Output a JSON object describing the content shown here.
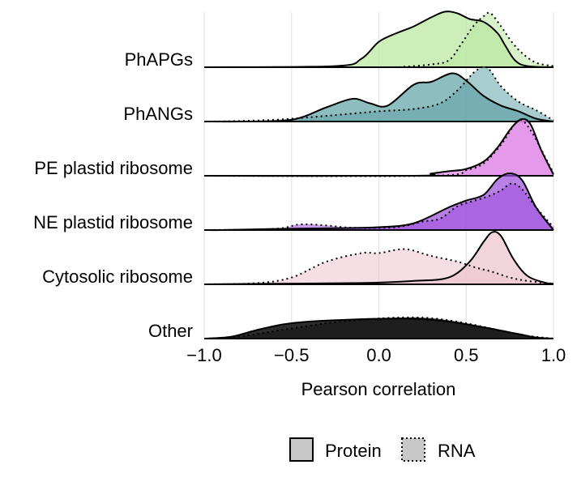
{
  "chart_data": {
    "type": "ridgeline",
    "xlabel": "Pearson correlation",
    "xlim": [
      -1.0,
      1.0
    ],
    "xticks": [
      -1.0,
      -0.5,
      0.0,
      0.5,
      1.0
    ],
    "xtick_labels": [
      "−1.0",
      "−0.5",
      "0.0",
      "0.5",
      "1.0"
    ],
    "grid": true,
    "legend_position": "bottom",
    "legend": [
      {
        "label": "Protein",
        "line": "solid"
      },
      {
        "label": "RNA",
        "line": "dotted"
      }
    ],
    "categories": [
      {
        "name": "PhAPGs",
        "color": "#b9e8a0",
        "protein": [
          [
            -0.25,
            0.02
          ],
          [
            -0.1,
            0.15
          ],
          [
            0.0,
            0.45
          ],
          [
            0.1,
            0.6
          ],
          [
            0.2,
            0.72
          ],
          [
            0.3,
            0.88
          ],
          [
            0.38,
            0.98
          ],
          [
            0.45,
            0.95
          ],
          [
            0.52,
            0.85
          ],
          [
            0.6,
            0.8
          ],
          [
            0.68,
            0.6
          ],
          [
            0.72,
            0.4
          ],
          [
            0.78,
            0.12
          ],
          [
            0.85,
            0.02
          ]
        ],
        "rna": [
          [
            0.0,
            0.0
          ],
          [
            0.15,
            0.01
          ],
          [
            0.3,
            0.05
          ],
          [
            0.4,
            0.12
          ],
          [
            0.47,
            0.4
          ],
          [
            0.54,
            0.72
          ],
          [
            0.6,
            0.9
          ],
          [
            0.64,
            0.95
          ],
          [
            0.7,
            0.72
          ],
          [
            0.76,
            0.45
          ],
          [
            0.82,
            0.25
          ],
          [
            0.9,
            0.08
          ],
          [
            1.0,
            0.02
          ]
        ]
      },
      {
        "name": "PhANGs",
        "color": "#62a3a8",
        "protein": [
          [
            -0.8,
            0.0
          ],
          [
            -0.5,
            0.03
          ],
          [
            -0.3,
            0.25
          ],
          [
            -0.15,
            0.4
          ],
          [
            -0.05,
            0.32
          ],
          [
            0.05,
            0.28
          ],
          [
            0.2,
            0.65
          ],
          [
            0.3,
            0.7
          ],
          [
            0.42,
            0.85
          ],
          [
            0.5,
            0.72
          ],
          [
            0.6,
            0.45
          ],
          [
            0.7,
            0.28
          ],
          [
            0.8,
            0.18
          ],
          [
            0.9,
            0.05
          ],
          [
            1.0,
            0.0
          ]
        ],
        "rna": [
          [
            -0.95,
            0.0
          ],
          [
            -0.6,
            0.03
          ],
          [
            -0.3,
            0.1
          ],
          [
            0.0,
            0.18
          ],
          [
            0.2,
            0.22
          ],
          [
            0.35,
            0.32
          ],
          [
            0.45,
            0.55
          ],
          [
            0.55,
            0.88
          ],
          [
            0.62,
            0.95
          ],
          [
            0.7,
            0.62
          ],
          [
            0.8,
            0.35
          ],
          [
            0.9,
            0.2
          ],
          [
            1.0,
            0.02
          ]
        ]
      },
      {
        "name": "PE plastid ribosome",
        "color": "#e08ae8",
        "protein": [
          [
            0.2,
            0.0
          ],
          [
            0.3,
            0.04
          ],
          [
            0.4,
            0.08
          ],
          [
            0.5,
            0.12
          ],
          [
            0.6,
            0.25
          ],
          [
            0.68,
            0.5
          ],
          [
            0.76,
            0.85
          ],
          [
            0.82,
            1.0
          ],
          [
            0.87,
            0.9
          ],
          [
            0.93,
            0.45
          ],
          [
            1.0,
            0.02
          ]
        ],
        "rna": [
          [
            0.3,
            0.0
          ],
          [
            0.5,
            0.1
          ],
          [
            0.6,
            0.22
          ],
          [
            0.7,
            0.55
          ],
          [
            0.78,
            0.92
          ],
          [
            0.82,
            0.98
          ],
          [
            0.88,
            0.75
          ],
          [
            0.94,
            0.4
          ],
          [
            1.0,
            0.05
          ]
        ]
      },
      {
        "name": "NE plastid ribosome",
        "color": "#9e4fdc",
        "protein": [
          [
            -0.9,
            0.0
          ],
          [
            -0.6,
            0.02
          ],
          [
            -0.3,
            0.03
          ],
          [
            0.0,
            0.05
          ],
          [
            0.2,
            0.12
          ],
          [
            0.4,
            0.4
          ],
          [
            0.5,
            0.52
          ],
          [
            0.6,
            0.62
          ],
          [
            0.68,
            0.9
          ],
          [
            0.75,
            1.0
          ],
          [
            0.82,
            0.88
          ],
          [
            0.9,
            0.4
          ],
          [
            1.0,
            0.0
          ]
        ],
        "rna": [
          [
            -1.0,
            0.0
          ],
          [
            -0.6,
            0.02
          ],
          [
            -0.45,
            0.1
          ],
          [
            -0.3,
            0.08
          ],
          [
            -0.15,
            0.04
          ],
          [
            0.1,
            0.05
          ],
          [
            0.25,
            0.15
          ],
          [
            0.35,
            0.2
          ],
          [
            0.45,
            0.42
          ],
          [
            0.55,
            0.52
          ],
          [
            0.63,
            0.6
          ],
          [
            0.7,
            0.7
          ],
          [
            0.76,
            0.82
          ],
          [
            0.82,
            0.72
          ],
          [
            0.9,
            0.4
          ],
          [
            1.0,
            0.05
          ]
        ]
      },
      {
        "name": "Cytosolic ribosome",
        "color": "#edc5cf",
        "protein": [
          [
            -1.0,
            0.0
          ],
          [
            -0.6,
            0.01
          ],
          [
            -0.2,
            0.02
          ],
          [
            0.0,
            0.03
          ],
          [
            0.2,
            0.06
          ],
          [
            0.4,
            0.12
          ],
          [
            0.52,
            0.4
          ],
          [
            0.6,
            0.75
          ],
          [
            0.65,
            0.92
          ],
          [
            0.7,
            0.85
          ],
          [
            0.77,
            0.45
          ],
          [
            0.85,
            0.15
          ],
          [
            0.95,
            0.03
          ],
          [
            1.0,
            0.01
          ]
        ],
        "rna": [
          [
            -1.0,
            0.0
          ],
          [
            -0.7,
            0.02
          ],
          [
            -0.5,
            0.12
          ],
          [
            -0.3,
            0.4
          ],
          [
            -0.1,
            0.55
          ],
          [
            0.0,
            0.55
          ],
          [
            0.15,
            0.62
          ],
          [
            0.3,
            0.5
          ],
          [
            0.45,
            0.4
          ],
          [
            0.55,
            0.3
          ],
          [
            0.65,
            0.22
          ],
          [
            0.75,
            0.12
          ],
          [
            0.85,
            0.06
          ],
          [
            1.0,
            0.01
          ]
        ]
      },
      {
        "name": "Other",
        "color": "#1a1a1a",
        "protein": [
          [
            -1.0,
            0.0
          ],
          [
            -0.85,
            0.03
          ],
          [
            -0.7,
            0.15
          ],
          [
            -0.55,
            0.25
          ],
          [
            -0.4,
            0.3
          ],
          [
            -0.2,
            0.33
          ],
          [
            0.0,
            0.35
          ],
          [
            0.2,
            0.35
          ],
          [
            0.4,
            0.3
          ],
          [
            0.6,
            0.2
          ],
          [
            0.8,
            0.08
          ],
          [
            0.9,
            0.02
          ],
          [
            1.0,
            0.0
          ]
        ],
        "rna": [
          [
            -1.0,
            0.0
          ],
          [
            -0.85,
            0.02
          ],
          [
            -0.7,
            0.08
          ],
          [
            -0.5,
            0.18
          ],
          [
            -0.3,
            0.27
          ],
          [
            -0.1,
            0.33
          ],
          [
            0.1,
            0.37
          ],
          [
            0.3,
            0.36
          ],
          [
            0.5,
            0.27
          ],
          [
            0.7,
            0.14
          ],
          [
            0.85,
            0.05
          ],
          [
            1.0,
            0.0
          ]
        ]
      }
    ]
  }
}
